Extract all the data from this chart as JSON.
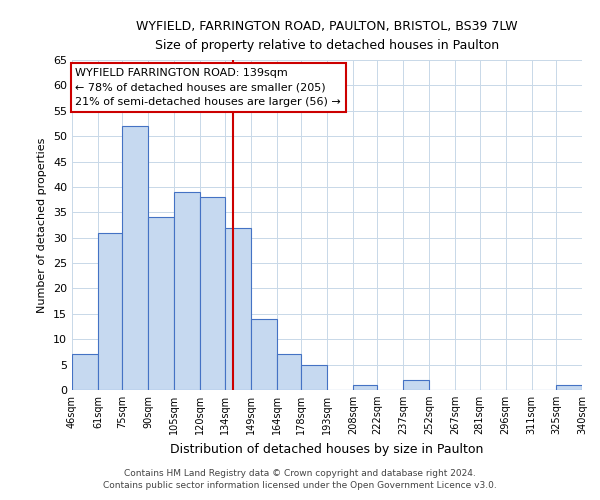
{
  "title1": "WYFIELD, FARRINGTON ROAD, PAULTON, BRISTOL, BS39 7LW",
  "title2": "Size of property relative to detached houses in Paulton",
  "xlabel": "Distribution of detached houses by size in Paulton",
  "ylabel": "Number of detached properties",
  "bar_edges": [
    46,
    61,
    75,
    90,
    105,
    120,
    134,
    149,
    164,
    178,
    193,
    208,
    222,
    237,
    252,
    267,
    281,
    296,
    311,
    325,
    340
  ],
  "bar_heights": [
    7,
    31,
    52,
    34,
    39,
    38,
    32,
    14,
    7,
    5,
    0,
    1,
    0,
    2,
    0,
    0,
    0,
    0,
    0,
    1
  ],
  "tick_labels": [
    "46sqm",
    "61sqm",
    "75sqm",
    "90sqm",
    "105sqm",
    "120sqm",
    "134sqm",
    "149sqm",
    "164sqm",
    "178sqm",
    "193sqm",
    "208sqm",
    "222sqm",
    "237sqm",
    "252sqm",
    "267sqm",
    "281sqm",
    "296sqm",
    "311sqm",
    "325sqm",
    "340sqm"
  ],
  "bar_color": "#c6d9f0",
  "bar_edge_color": "#4472c4",
  "vline_x": 139,
  "vline_color": "#cc0000",
  "ylim": [
    0,
    65
  ],
  "yticks": [
    0,
    5,
    10,
    15,
    20,
    25,
    30,
    35,
    40,
    45,
    50,
    55,
    60,
    65
  ],
  "annotation_title": "WYFIELD FARRINGTON ROAD: 139sqm",
  "annotation_line1": "← 78% of detached houses are smaller (205)",
  "annotation_line2": "21% of semi-detached houses are larger (56) →",
  "annotation_box_color": "#ffffff",
  "annotation_box_edge": "#cc0000",
  "footnote1": "Contains HM Land Registry data © Crown copyright and database right 2024.",
  "footnote2": "Contains public sector information licensed under the Open Government Licence v3.0.",
  "bg_color": "#ffffff",
  "grid_color": "#c8d8e8"
}
